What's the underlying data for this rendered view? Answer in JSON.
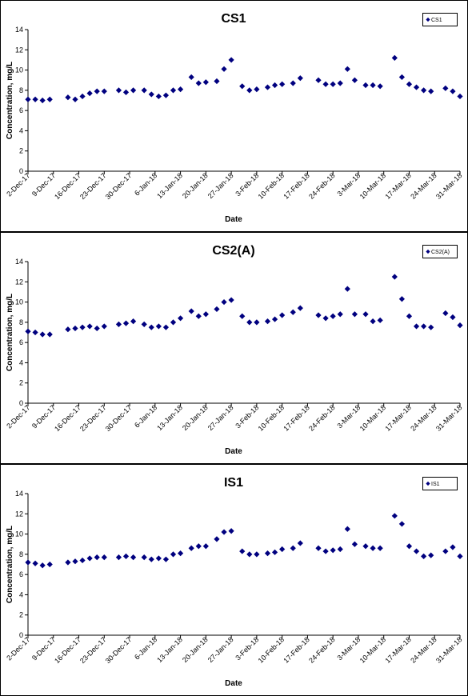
{
  "chart_data": [
    {
      "type": "scatter",
      "title": "CS1",
      "xlabel": "Date",
      "ylabel": "Concentration, mg/L",
      "ylim": [
        0,
        14
      ],
      "yticks": [
        0,
        2,
        4,
        6,
        8,
        10,
        12,
        14
      ],
      "xlim": [
        "2017-12-02",
        "2018-03-31"
      ],
      "xtick_labels": [
        "2-Dec-17",
        "9-Dec-17",
        "16-Dec-17",
        "23-Dec-17",
        "30-Dec-17",
        "6-Jan-18",
        "13-Jan-18",
        "20-Jan-18",
        "27-Jan-18",
        "3-Feb-18",
        "10-Feb-18",
        "17-Feb-18",
        "24-Feb-18",
        "3-Mar-18",
        "10-Mar-18",
        "17-Mar-18",
        "24-Mar-18",
        "31-Mar-18"
      ],
      "grid": false,
      "legend": "top-right",
      "marker": "diamond",
      "color": "#00007f",
      "series": [
        {
          "name": "CS1",
          "points": [
            [
              "2017-12-02",
              7.1
            ],
            [
              "2017-12-04",
              7.1
            ],
            [
              "2017-12-06",
              7.0
            ],
            [
              "2017-12-08",
              7.1
            ],
            [
              "2017-12-13",
              7.3
            ],
            [
              "2017-12-15",
              7.1
            ],
            [
              "2017-12-17",
              7.4
            ],
            [
              "2017-12-19",
              7.7
            ],
            [
              "2017-12-21",
              7.9
            ],
            [
              "2017-12-23",
              7.9
            ],
            [
              "2017-12-27",
              8.0
            ],
            [
              "2017-12-29",
              7.8
            ],
            [
              "2017-12-31",
              8.0
            ],
            [
              "2018-01-03",
              8.0
            ],
            [
              "2018-01-05",
              7.6
            ],
            [
              "2018-01-07",
              7.4
            ],
            [
              "2018-01-09",
              7.5
            ],
            [
              "2018-01-11",
              8.0
            ],
            [
              "2018-01-13",
              8.1
            ],
            [
              "2018-01-16",
              9.3
            ],
            [
              "2018-01-18",
              8.7
            ],
            [
              "2018-01-20",
              8.8
            ],
            [
              "2018-01-23",
              8.9
            ],
            [
              "2018-01-25",
              10.1
            ],
            [
              "2018-01-27",
              11.0
            ],
            [
              "2018-01-30",
              8.4
            ],
            [
              "2018-02-01",
              8.0
            ],
            [
              "2018-02-03",
              8.1
            ],
            [
              "2018-02-06",
              8.3
            ],
            [
              "2018-02-08",
              8.5
            ],
            [
              "2018-02-10",
              8.6
            ],
            [
              "2018-02-13",
              8.7
            ],
            [
              "2018-02-15",
              9.2
            ],
            [
              "2018-02-20",
              9.0
            ],
            [
              "2018-02-22",
              8.6
            ],
            [
              "2018-02-24",
              8.6
            ],
            [
              "2018-02-26",
              8.7
            ],
            [
              "2018-02-28",
              10.1
            ],
            [
              "2018-03-02",
              9.0
            ],
            [
              "2018-03-05",
              8.5
            ],
            [
              "2018-03-07",
              8.5
            ],
            [
              "2018-03-09",
              8.4
            ],
            [
              "2018-03-13",
              11.2
            ],
            [
              "2018-03-15",
              9.3
            ],
            [
              "2018-03-17",
              8.6
            ],
            [
              "2018-03-19",
              8.3
            ],
            [
              "2018-03-21",
              8.0
            ],
            [
              "2018-03-23",
              7.9
            ],
            [
              "2018-03-27",
              8.2
            ],
            [
              "2018-03-29",
              7.9
            ],
            [
              "2018-03-31",
              7.4
            ]
          ]
        }
      ]
    },
    {
      "type": "scatter",
      "title": "CS2(A)",
      "xlabel": "Date",
      "ylabel": "Concentration, mg/L",
      "ylim": [
        0,
        14
      ],
      "yticks": [
        0,
        2,
        4,
        6,
        8,
        10,
        12,
        14
      ],
      "xlim": [
        "2017-12-02",
        "2018-03-31"
      ],
      "xtick_labels": [
        "2-Dec-17",
        "9-Dec-17",
        "16-Dec-17",
        "23-Dec-17",
        "30-Dec-17",
        "6-Jan-18",
        "13-Jan-18",
        "20-Jan-18",
        "27-Jan-18",
        "3-Feb-18",
        "10-Feb-18",
        "17-Feb-18",
        "24-Feb-18",
        "3-Mar-18",
        "10-Mar-18",
        "17-Mar-18",
        "24-Mar-18",
        "31-Mar-18"
      ],
      "grid": false,
      "legend": "top-right",
      "marker": "diamond",
      "color": "#00007f",
      "series": [
        {
          "name": "CS2(A)",
          "points": [
            [
              "2017-12-02",
              7.1
            ],
            [
              "2017-12-04",
              7.0
            ],
            [
              "2017-12-06",
              6.8
            ],
            [
              "2017-12-08",
              6.8
            ],
            [
              "2017-12-13",
              7.3
            ],
            [
              "2017-12-15",
              7.4
            ],
            [
              "2017-12-17",
              7.5
            ],
            [
              "2017-12-19",
              7.6
            ],
            [
              "2017-12-21",
              7.4
            ],
            [
              "2017-12-23",
              7.6
            ],
            [
              "2017-12-27",
              7.8
            ],
            [
              "2017-12-29",
              7.9
            ],
            [
              "2017-12-31",
              8.1
            ],
            [
              "2018-01-03",
              7.8
            ],
            [
              "2018-01-05",
              7.5
            ],
            [
              "2018-01-07",
              7.6
            ],
            [
              "2018-01-09",
              7.5
            ],
            [
              "2018-01-11",
              8.0
            ],
            [
              "2018-01-13",
              8.4
            ],
            [
              "2018-01-16",
              9.1
            ],
            [
              "2018-01-18",
              8.6
            ],
            [
              "2018-01-20",
              8.8
            ],
            [
              "2018-01-23",
              9.3
            ],
            [
              "2018-01-25",
              10.0
            ],
            [
              "2018-01-27",
              10.2
            ],
            [
              "2018-01-30",
              8.6
            ],
            [
              "2018-02-01",
              8.0
            ],
            [
              "2018-02-03",
              8.0
            ],
            [
              "2018-02-06",
              8.1
            ],
            [
              "2018-02-08",
              8.3
            ],
            [
              "2018-02-10",
              8.7
            ],
            [
              "2018-02-13",
              9.0
            ],
            [
              "2018-02-15",
              9.4
            ],
            [
              "2018-02-20",
              8.7
            ],
            [
              "2018-02-22",
              8.4
            ],
            [
              "2018-02-24",
              8.6
            ],
            [
              "2018-02-26",
              8.8
            ],
            [
              "2018-02-28",
              11.3
            ],
            [
              "2018-03-02",
              8.8
            ],
            [
              "2018-03-05",
              8.8
            ],
            [
              "2018-03-07",
              8.1
            ],
            [
              "2018-03-09",
              8.2
            ],
            [
              "2018-03-13",
              12.5
            ],
            [
              "2018-03-15",
              10.3
            ],
            [
              "2018-03-17",
              8.6
            ],
            [
              "2018-03-19",
              7.6
            ],
            [
              "2018-03-21",
              7.6
            ],
            [
              "2018-03-23",
              7.5
            ],
            [
              "2018-03-27",
              8.9
            ],
            [
              "2018-03-29",
              8.5
            ],
            [
              "2018-03-31",
              7.7
            ]
          ]
        }
      ]
    },
    {
      "type": "scatter",
      "title": "IS1",
      "xlabel": "Date",
      "ylabel": "Concentration, mg/L",
      "ylim": [
        0,
        14
      ],
      "yticks": [
        0,
        2,
        4,
        6,
        8,
        10,
        12,
        14
      ],
      "xlim": [
        "2017-12-02",
        "2018-03-31"
      ],
      "xtick_labels": [
        "2-Dec-17",
        "9-Dec-17",
        "16-Dec-17",
        "23-Dec-17",
        "30-Dec-17",
        "6-Jan-18",
        "13-Jan-18",
        "20-Jan-18",
        "27-Jan-18",
        "3-Feb-18",
        "10-Feb-18",
        "17-Feb-18",
        "24-Feb-18",
        "3-Mar-18",
        "10-Mar-18",
        "17-Mar-18",
        "24-Mar-18",
        "31-Mar-18"
      ],
      "grid": false,
      "legend": "top-right",
      "marker": "diamond",
      "color": "#00007f",
      "series": [
        {
          "name": "IS1",
          "points": [
            [
              "2017-12-02",
              7.2
            ],
            [
              "2017-12-04",
              7.1
            ],
            [
              "2017-12-06",
              6.9
            ],
            [
              "2017-12-08",
              7.0
            ],
            [
              "2017-12-13",
              7.2
            ],
            [
              "2017-12-15",
              7.3
            ],
            [
              "2017-12-17",
              7.4
            ],
            [
              "2017-12-19",
              7.6
            ],
            [
              "2017-12-21",
              7.7
            ],
            [
              "2017-12-23",
              7.7
            ],
            [
              "2017-12-27",
              7.7
            ],
            [
              "2017-12-29",
              7.8
            ],
            [
              "2017-12-31",
              7.7
            ],
            [
              "2018-01-03",
              7.7
            ],
            [
              "2018-01-05",
              7.5
            ],
            [
              "2018-01-07",
              7.6
            ],
            [
              "2018-01-09",
              7.5
            ],
            [
              "2018-01-11",
              8.0
            ],
            [
              "2018-01-13",
              8.1
            ],
            [
              "2018-01-16",
              8.6
            ],
            [
              "2018-01-18",
              8.8
            ],
            [
              "2018-01-20",
              8.8
            ],
            [
              "2018-01-23",
              9.5
            ],
            [
              "2018-01-25",
              10.2
            ],
            [
              "2018-01-27",
              10.3
            ],
            [
              "2018-01-30",
              8.3
            ],
            [
              "2018-02-01",
              8.0
            ],
            [
              "2018-02-03",
              8.0
            ],
            [
              "2018-02-06",
              8.1
            ],
            [
              "2018-02-08",
              8.2
            ],
            [
              "2018-02-10",
              8.5
            ],
            [
              "2018-02-13",
              8.6
            ],
            [
              "2018-02-15",
              9.1
            ],
            [
              "2018-02-20",
              8.6
            ],
            [
              "2018-02-22",
              8.3
            ],
            [
              "2018-02-24",
              8.4
            ],
            [
              "2018-02-26",
              8.5
            ],
            [
              "2018-02-28",
              10.5
            ],
            [
              "2018-03-02",
              9.0
            ],
            [
              "2018-03-05",
              8.8
            ],
            [
              "2018-03-07",
              8.6
            ],
            [
              "2018-03-09",
              8.6
            ],
            [
              "2018-03-13",
              11.8
            ],
            [
              "2018-03-15",
              11.0
            ],
            [
              "2018-03-17",
              8.8
            ],
            [
              "2018-03-19",
              8.3
            ],
            [
              "2018-03-21",
              7.8
            ],
            [
              "2018-03-23",
              7.9
            ],
            [
              "2018-03-27",
              8.3
            ],
            [
              "2018-03-29",
              8.7
            ],
            [
              "2018-03-31",
              7.8
            ]
          ]
        }
      ]
    }
  ]
}
